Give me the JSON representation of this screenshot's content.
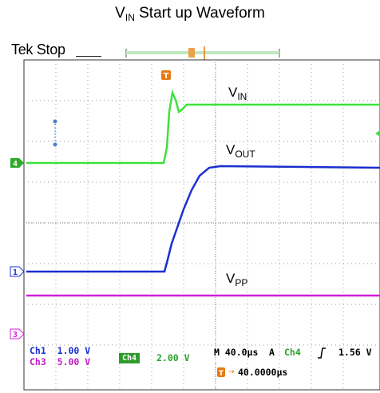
{
  "title": {
    "main": "V",
    "sub": "IN",
    "rest": " Start up Waveform"
  },
  "status": {
    "brand": "Tek",
    "state": "Stop"
  },
  "channel_labels": {
    "vin": {
      "main": "V",
      "sub": "IN"
    },
    "vout": {
      "main": "V",
      "sub": "OUT"
    },
    "vpp": {
      "main": "V",
      "sub": "PP"
    }
  },
  "markers": {
    "trigger": "T",
    "ch4": "4",
    "ch1": "1",
    "ch3": "3"
  },
  "readouts": {
    "ch1_name": "Ch1",
    "ch1_scale": "1.00 V",
    "ch3_name": "Ch3",
    "ch3_scale": "5.00 V",
    "ch4_name": "Ch4",
    "ch4_scale": "2.00 V",
    "timebase": "M 40.0µs",
    "trigger_mode": "A",
    "trigger_source": "Ch4",
    "trigger_level": "1.56 V",
    "trigger_pos_icon": "T",
    "trigger_position": "40.0000µs"
  },
  "colors": {
    "ch1": "#1a2fd0",
    "ch3": "#d21ed7",
    "ch4": "#3ee13a",
    "trigger": "#e87a10",
    "grid": "#9a9a9a"
  }
}
